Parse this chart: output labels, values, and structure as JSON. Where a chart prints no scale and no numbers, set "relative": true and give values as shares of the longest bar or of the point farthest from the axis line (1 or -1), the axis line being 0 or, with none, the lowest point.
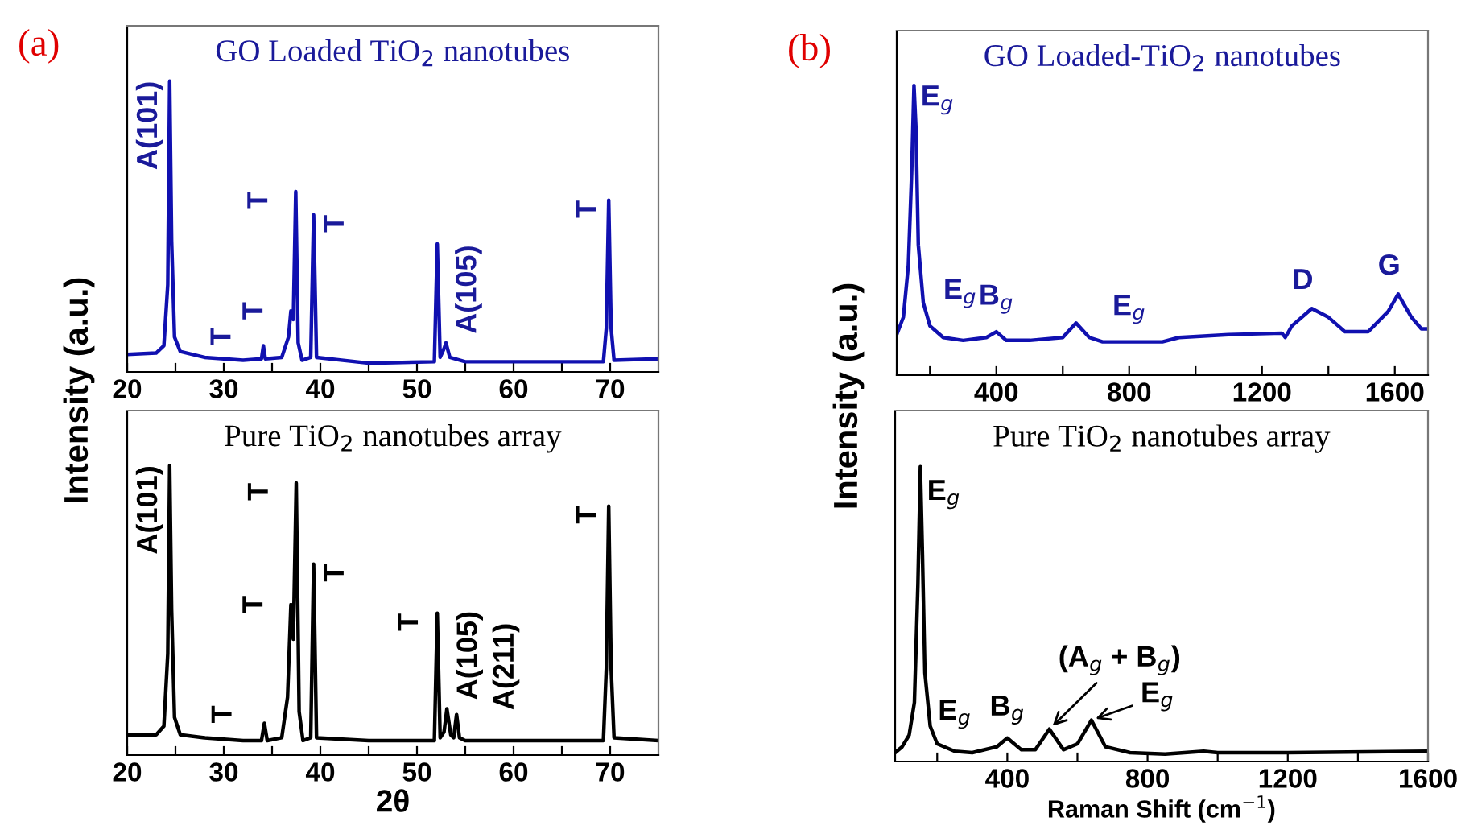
{
  "chart_data": [
    {
      "type": "line",
      "relative": true,
      "title": "GO Loaded TiO$_{2}$ nanotubes",
      "ylabel": "Intensity (a.u.)",
      "xlim": [
        20,
        75
      ],
      "tick_labels": "x",
      "grid": false,
      "legend": false,
      "marker": "none",
      "line_style": "solid",
      "xticks": [
        20,
        {
          "value": 25,
          "label": null
        },
        30,
        {
          "value": 35,
          "label": null
        },
        40,
        {
          "value": 45,
          "label": null
        },
        50,
        {
          "value": 55,
          "label": null
        },
        60,
        {
          "value": 65,
          "label": null
        },
        70
      ],
      "series": [
        {
          "color": "#1010b0",
          "x": [
            20,
            23,
            23.8,
            24.2,
            24.4,
            24.6,
            24.9,
            25.5,
            28,
            32,
            33.9,
            34.1,
            34.3,
            36,
            36.7,
            36.95,
            37.2,
            37.45,
            37.7,
            38.1,
            39.0,
            39.3,
            39.6,
            45,
            51.8,
            52.1,
            52.4,
            52.8,
            53.0,
            53.4,
            55,
            60,
            69.3,
            69.6,
            69.85,
            70.1,
            70.4,
            75
          ],
          "values": [
            0.06,
            0.065,
            0.09,
            0.3,
            1.0,
            0.45,
            0.12,
            0.07,
            0.05,
            0.04,
            0.045,
            0.09,
            0.045,
            0.05,
            0.12,
            0.21,
            0.18,
            0.62,
            0.1,
            0.04,
            0.05,
            0.54,
            0.05,
            0.03,
            0.035,
            0.44,
            0.05,
            0.08,
            0.1,
            0.05,
            0.035,
            0.035,
            0.035,
            0.15,
            0.59,
            0.15,
            0.04,
            0.045
          ]
        }
      ],
      "annotations": [
        "(a)",
        {
          "text": "A(101)",
          "x": 24.4,
          "y": 1.0
        },
        {
          "text": "T",
          "x": 34.1,
          "y": 0.09
        },
        {
          "text": "T",
          "x": 36.95,
          "y": 0.21
        },
        {
          "text": "T",
          "x": 37.45,
          "y": 0.62
        },
        {
          "text": "T",
          "x": 39.3,
          "y": 0.54
        },
        {
          "text": "A(105)",
          "x": 53.0,
          "y": 0.1
        },
        {
          "text": "T",
          "x": 69.85,
          "y": 0.59
        }
      ]
    },
    {
      "type": "line",
      "relative": true,
      "title": "Pure TiO$_{2}$ nanotubes array",
      "xlabel": "2θ",
      "xlim": [
        20,
        75
      ],
      "tick_labels": "x",
      "grid": false,
      "legend": false,
      "marker": "none",
      "line_style": "solid",
      "xticks": [
        20,
        {
          "value": 25,
          "label": null
        },
        30,
        {
          "value": 35,
          "label": null
        },
        40,
        {
          "value": 45,
          "label": null
        },
        50,
        {
          "value": 55,
          "label": null
        },
        60,
        {
          "value": 65,
          "label": null
        },
        70
      ],
      "series": [
        {
          "color": "#000000",
          "x": [
            20,
            23,
            23.8,
            24.2,
            24.4,
            24.6,
            24.9,
            25.5,
            28,
            32,
            33.9,
            34.2,
            34.5,
            36,
            36.6,
            36.95,
            37.2,
            37.5,
            37.8,
            38.2,
            39.0,
            39.3,
            39.6,
            45,
            51.8,
            52.1,
            52.4,
            52.8,
            53.1,
            53.5,
            53.8,
            54.1,
            54.4,
            55,
            60,
            69.3,
            69.6,
            69.85,
            70.1,
            70.4,
            75
          ],
          "values": [
            0.07,
            0.07,
            0.1,
            0.35,
            1.0,
            0.5,
            0.13,
            0.07,
            0.06,
            0.05,
            0.05,
            0.11,
            0.05,
            0.06,
            0.2,
            0.52,
            0.4,
            0.94,
            0.15,
            0.05,
            0.06,
            0.66,
            0.06,
            0.05,
            0.05,
            0.49,
            0.06,
            0.08,
            0.16,
            0.07,
            0.06,
            0.14,
            0.06,
            0.05,
            0.05,
            0.05,
            0.3,
            0.86,
            0.3,
            0.06,
            0.05
          ]
        }
      ],
      "annotations": [
        {
          "text": "A(101)",
          "x": 24.4,
          "y": 1.0
        },
        {
          "text": "T",
          "x": 34.2,
          "y": 0.11
        },
        {
          "text": "T",
          "x": 36.95,
          "y": 0.52
        },
        {
          "text": "T",
          "x": 37.5,
          "y": 0.94
        },
        {
          "text": "T",
          "x": 39.3,
          "y": 0.66
        },
        {
          "text": "T",
          "x": 52.1,
          "y": 0.49
        },
        {
          "text": "A(105)",
          "x": 53.1,
          "y": 0.16
        },
        {
          "text": "A(211)",
          "x": 54.1,
          "y": 0.14
        },
        {
          "text": "T",
          "x": 69.85,
          "y": 0.86
        }
      ]
    },
    {
      "type": "line",
      "relative": true,
      "title": "GO Loaded-TiO$_{2}$ nanotubes",
      "ylabel": "Intensity (a.u.)",
      "xlim": [
        100,
        1700
      ],
      "tick_labels": "x",
      "grid": false,
      "legend": false,
      "marker": "none",
      "line_style": "solid",
      "xticks": [
        {
          "value": 200,
          "label": null
        },
        400,
        {
          "value": 600,
          "label": null
        },
        800,
        {
          "value": 1000,
          "label": null
        },
        1200,
        {
          "value": 1400,
          "label": null
        },
        1600
      ],
      "series": [
        {
          "color": "#1010b0",
          "x": [
            100,
            120,
            135,
            145,
            152,
            158,
            165,
            180,
            200,
            240,
            300,
            370,
            400,
            430,
            500,
            600,
            640,
            680,
            720,
            900,
            950,
            1100,
            1260,
            1270,
            1290,
            1350,
            1400,
            1450,
            1520,
            1580,
            1610,
            1650,
            1680,
            1700
          ],
          "values": [
            0.14,
            0.2,
            0.38,
            0.7,
            1.0,
            0.85,
            0.45,
            0.25,
            0.17,
            0.13,
            0.12,
            0.13,
            0.15,
            0.12,
            0.12,
            0.13,
            0.18,
            0.13,
            0.115,
            0.115,
            0.13,
            0.14,
            0.145,
            0.13,
            0.17,
            0.23,
            0.2,
            0.15,
            0.15,
            0.22,
            0.28,
            0.2,
            0.16,
            0.16
          ]
        }
      ],
      "annotations": [
        "(b)",
        {
          "text": "E$_{g}$",
          "x": 152,
          "y": 1.0
        },
        {
          "text": "E$_{g}$",
          "x": 200,
          "y": 0.17
        },
        {
          "text": "B$_{g}$",
          "x": 400,
          "y": 0.15
        },
        {
          "text": "E$_{g}$",
          "x": 800,
          "y": 0.115
        },
        {
          "text": "D",
          "x": 1350,
          "y": 0.23
        },
        {
          "text": "G",
          "x": 1610,
          "y": 0.28
        }
      ]
    },
    {
      "type": "line",
      "relative": true,
      "title": "Pure TiO$_{2}$ nanotubes array",
      "xlabel": "Raman Shift (cm$^{−1}$)",
      "xlim": [
        80,
        1600
      ],
      "tick_labels": "x",
      "grid": false,
      "legend": false,
      "marker": "none",
      "line_style": "solid",
      "xticks": [
        {
          "value": 200,
          "label": null
        },
        400,
        {
          "value": 600,
          "label": null
        },
        800,
        {
          "value": 1000,
          "label": null
        },
        1200,
        {
          "value": 1400,
          "label": null
        },
        1600
      ],
      "series": [
        {
          "color": "#000000",
          "x": [
            80,
            100,
            120,
            135,
            145,
            152,
            158,
            165,
            180,
            200,
            250,
            300,
            370,
            400,
            440,
            480,
            520,
            560,
            600,
            640,
            680,
            750,
            850,
            960,
            1000,
            1200,
            1600
          ],
          "values": [
            0.03,
            0.05,
            0.09,
            0.2,
            0.6,
            1.0,
            0.7,
            0.3,
            0.12,
            0.06,
            0.035,
            0.03,
            0.05,
            0.08,
            0.04,
            0.04,
            0.11,
            0.04,
            0.06,
            0.14,
            0.05,
            0.03,
            0.025,
            0.035,
            0.03,
            0.03,
            0.035
          ]
        }
      ],
      "annotations": [
        {
          "text": "E$_{g}$",
          "x": 152,
          "y": 1.0
        },
        {
          "text": "E$_{g}$",
          "x": 250,
          "y": 0.035
        },
        {
          "text": "B$_{g}$",
          "x": 400,
          "y": 0.08
        },
        {
          "text": "(A$_{g}$ + B$_{g}$)",
          "x": 520,
          "y": 0.11
        },
        {
          "text": "E$_{g}$",
          "x": 640,
          "y": 0.14
        }
      ]
    }
  ]
}
